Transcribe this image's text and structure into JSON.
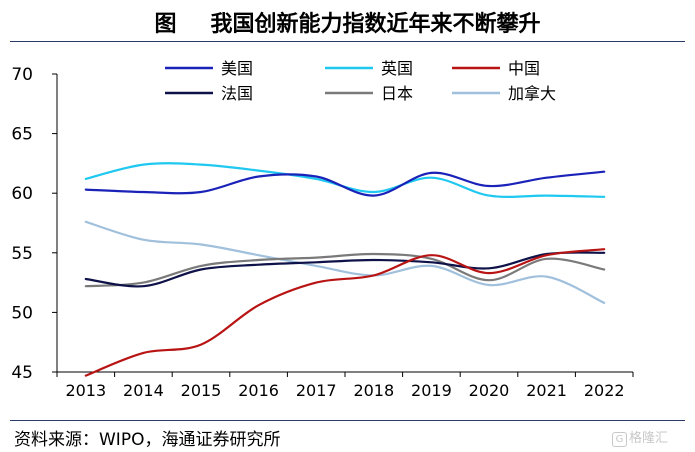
{
  "figure": {
    "label": "图",
    "title": "我国创新能力指数近年来不断攀升",
    "source": "资料来源：WIPO，海通证券研究所",
    "watermark": "格隆汇"
  },
  "chart_data": {
    "type": "line",
    "title": "我国创新能力指数近年来不断攀升",
    "xlabel": "",
    "ylabel": "",
    "x": [
      "2013",
      "2014",
      "2015",
      "2016",
      "2017",
      "2018",
      "2019",
      "2020",
      "2021",
      "2022"
    ],
    "ylim": [
      45,
      70
    ],
    "yticks": [
      45,
      50,
      55,
      60,
      65,
      70
    ],
    "grid": false,
    "legend_position": "top-center",
    "series": [
      {
        "name": "美国",
        "color": "#1a22b8",
        "values": [
          60.3,
          60.1,
          60.1,
          61.4,
          61.4,
          59.8,
          61.7,
          60.6,
          61.3,
          61.8
        ]
      },
      {
        "name": "英国",
        "color": "#1ec8f0",
        "values": [
          61.2,
          62.4,
          62.4,
          61.9,
          61.2,
          60.1,
          61.3,
          59.8,
          59.8,
          59.7
        ]
      },
      {
        "name": "中国",
        "color": "#b81414",
        "values": [
          44.7,
          46.6,
          47.3,
          50.6,
          52.5,
          53.1,
          54.8,
          53.3,
          54.8,
          55.3
        ]
      },
      {
        "name": "法国",
        "color": "#0e1248",
        "values": [
          52.8,
          52.2,
          53.6,
          54.0,
          54.2,
          54.4,
          54.2,
          53.7,
          54.9,
          55.0
        ]
      },
      {
        "name": "日本",
        "color": "#7a7a7a",
        "values": [
          52.2,
          52.5,
          53.9,
          54.4,
          54.6,
          54.9,
          54.5,
          52.7,
          54.5,
          53.6
        ]
      },
      {
        "name": "加拿大",
        "color": "#a0c0dc",
        "values": [
          57.6,
          56.1,
          55.7,
          54.8,
          53.9,
          53.1,
          53.9,
          52.3,
          53.0,
          50.8
        ]
      }
    ]
  }
}
